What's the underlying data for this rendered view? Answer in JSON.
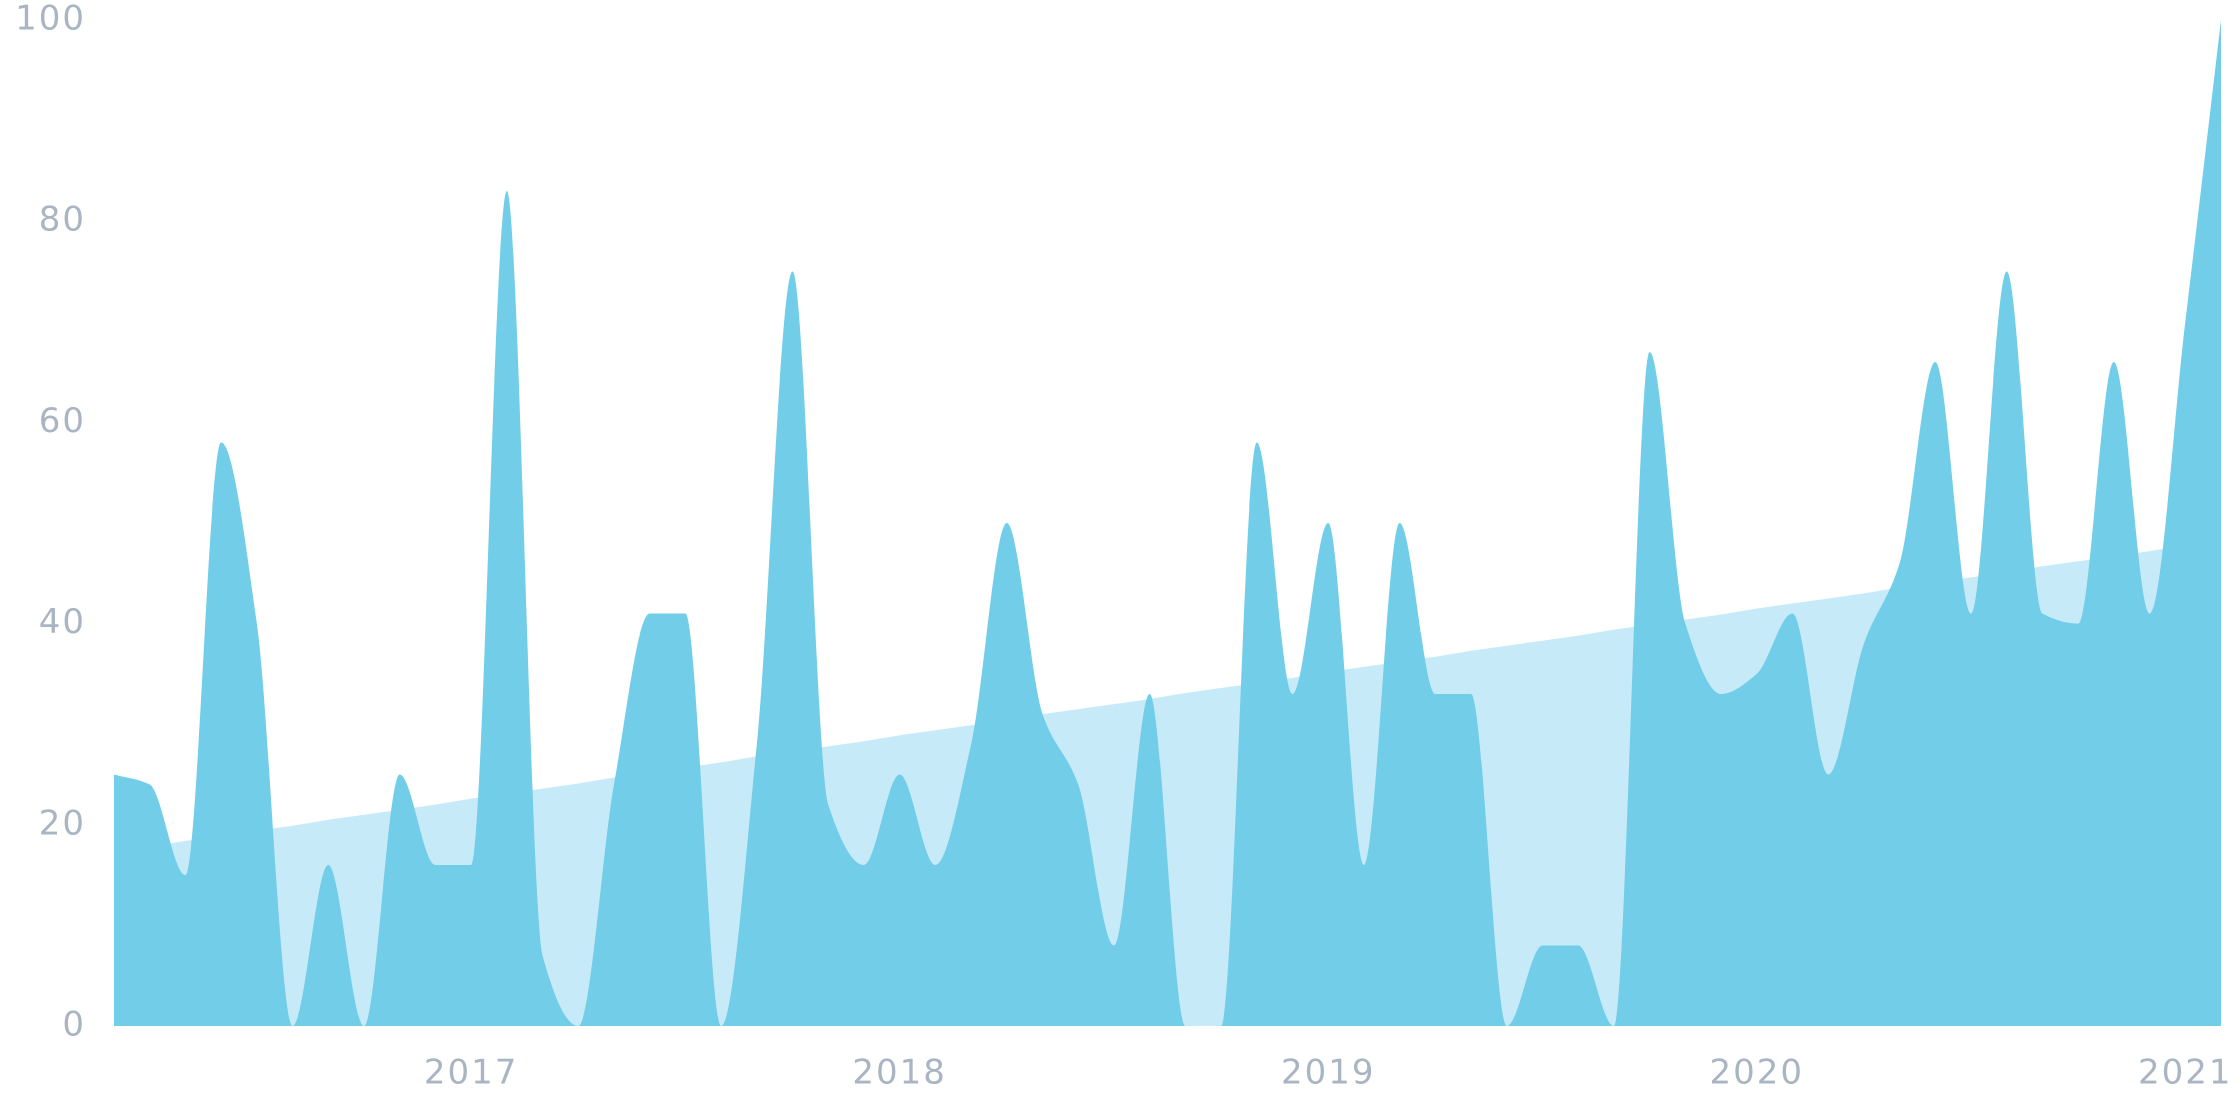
{
  "chart_data": {
    "type": "area",
    "categories": [
      null,
      null,
      null,
      null,
      null,
      null,
      null,
      null,
      null,
      null,
      "2017",
      null,
      null,
      null,
      null,
      null,
      null,
      null,
      null,
      null,
      null,
      null,
      "2018",
      null,
      null,
      null,
      null,
      null,
      null,
      null,
      null,
      null,
      null,
      null,
      "2019",
      null,
      null,
      null,
      null,
      null,
      null,
      null,
      null,
      null,
      null,
      null,
      "2020",
      null,
      null,
      null,
      null,
      null,
      null,
      null,
      null,
      null,
      null,
      null,
      "2021",
      null
    ],
    "series": [
      {
        "color": "#c7eaf8",
        "values": [
          17.3,
          17.8,
          18.4,
          18.9,
          19.4,
          19.9,
          20.5,
          21.0,
          21.5,
          22.0,
          22.6,
          23.1,
          23.6,
          24.1,
          24.7,
          25.2,
          25.7,
          26.2,
          26.8,
          27.3,
          27.8,
          28.3,
          28.9,
          29.4,
          29.9,
          30.4,
          31.0,
          31.5,
          32.0,
          32.5,
          33.1,
          33.6,
          34.1,
          34.6,
          35.2,
          35.7,
          36.2,
          36.7,
          37.3,
          37.8,
          38.3,
          38.8,
          39.4,
          39.9,
          40.4,
          40.9,
          41.5,
          42.0,
          42.5,
          43.0,
          43.6,
          44.1,
          44.6,
          45.1,
          45.7,
          46.2,
          46.7,
          47.2,
          47.8,
          48.3
        ],
        "smooth": false
      },
      {
        "color": "#72cde9",
        "values": [
          25,
          24,
          15,
          58,
          40,
          0,
          16,
          0,
          25,
          16,
          16,
          83,
          7,
          0,
          24,
          41,
          41,
          0,
          28,
          75,
          22,
          16,
          25,
          16,
          28,
          50,
          31,
          24,
          8,
          33,
          0,
          0,
          58,
          33,
          50,
          16,
          50,
          33,
          33,
          0,
          8,
          8,
          0,
          67,
          40,
          33,
          35,
          41,
          25,
          38,
          46,
          66,
          41,
          75,
          41,
          40,
          66,
          41,
          70,
          100
        ],
        "smooth": true
      }
    ],
    "ylim": [
      0,
      100
    ],
    "yticks": [
      0,
      20,
      40,
      60,
      80,
      100
    ],
    "grid": false
  }
}
